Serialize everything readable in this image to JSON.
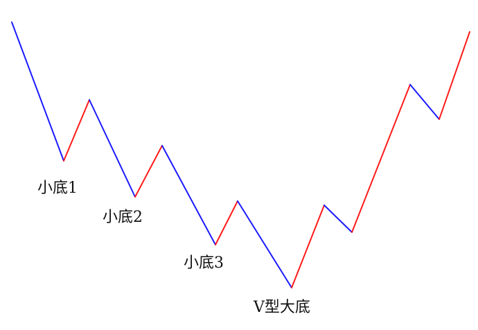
{
  "colors": {
    "down": "#1a1aff",
    "up": "#ff1a1a",
    "background": "#ffffff",
    "label": "#111111"
  },
  "labels": {
    "bottom1": "小底1",
    "bottom2": "小底2",
    "bottom3": "小底3",
    "v_bottom": "V型大底"
  }
}
